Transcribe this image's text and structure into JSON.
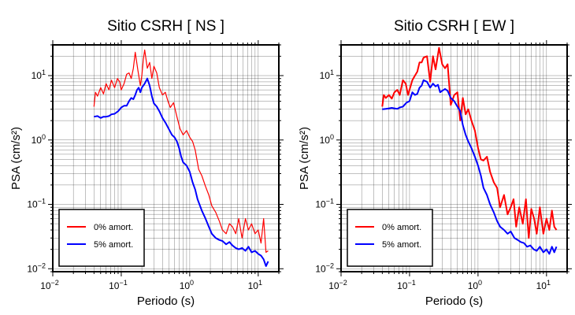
{
  "chart_data": [
    {
      "type": "line",
      "title": "Sitio CSRH [ NS ]",
      "xlabel": "Periodo (s)",
      "ylabel": "PSA (cm/s²)",
      "x_scale": "log",
      "y_scale": "log",
      "xlim": [
        0.01,
        20
      ],
      "ylim": [
        0.009,
        30
      ],
      "grid": true,
      "x_ticks": [
        {
          "value": 0.01,
          "label": "10",
          "exp": "−2"
        },
        {
          "value": 0.1,
          "label": "10",
          "exp": "−1"
        },
        {
          "value": 1,
          "label": "10",
          "exp": "0"
        },
        {
          "value": 10,
          "label": "10",
          "exp": "1"
        }
      ],
      "y_ticks": [
        {
          "value": 0.01,
          "label": "10",
          "exp": "−2"
        },
        {
          "value": 0.1,
          "label": "10",
          "exp": "−1"
        },
        {
          "value": 1,
          "label": "10",
          "exp": "0"
        },
        {
          "value": 10,
          "label": "10",
          "exp": "1"
        }
      ],
      "legend_position": "bottom-left",
      "series": [
        {
          "name": "0% amort.",
          "color": "#ff0000",
          "stroke_width": 1.2,
          "x": [
            0.04,
            0.042,
            0.045,
            0.05,
            0.055,
            0.06,
            0.066,
            0.072,
            0.08,
            0.088,
            0.095,
            0.1,
            0.11,
            0.12,
            0.13,
            0.14,
            0.15,
            0.16,
            0.175,
            0.19,
            0.2,
            0.21,
            0.22,
            0.24,
            0.26,
            0.28,
            0.3,
            0.33,
            0.36,
            0.4,
            0.44,
            0.48,
            0.52,
            0.58,
            0.65,
            0.72,
            0.8,
            0.9,
            1.0,
            1.1,
            1.2,
            1.35,
            1.5,
            1.7,
            1.9,
            2.1,
            2.4,
            2.7,
            3.0,
            3.4,
            3.8,
            4.2,
            4.7,
            5.2,
            5.8,
            6.5,
            7.2,
            8.0,
            9.0,
            10.0,
            11.0,
            12.0,
            13.0,
            14.0
          ],
          "y": [
            3.3,
            5.5,
            4.8,
            6.5,
            5.2,
            7.5,
            6.0,
            8.5,
            6.5,
            9.0,
            8.0,
            6.0,
            7.5,
            10.5,
            11.0,
            9.0,
            13.0,
            23.0,
            12.0,
            7.0,
            10.0,
            18.0,
            25.0,
            13.0,
            16.0,
            9.0,
            14.0,
            11.0,
            6.5,
            5.0,
            5.5,
            4.0,
            3.2,
            3.8,
            2.3,
            1.5,
            1.2,
            1.4,
            1.1,
            0.95,
            0.7,
            0.35,
            0.28,
            0.19,
            0.14,
            0.095,
            0.075,
            0.055,
            0.04,
            0.035,
            0.05,
            0.045,
            0.035,
            0.06,
            0.03,
            0.06,
            0.04,
            0.05,
            0.035,
            0.04,
            0.025,
            0.06,
            0.018,
            0.019
          ]
        },
        {
          "name": "5% amort.",
          "color": "#0000ff",
          "stroke_width": 2,
          "x": [
            0.04,
            0.045,
            0.05,
            0.055,
            0.06,
            0.066,
            0.072,
            0.08,
            0.09,
            0.1,
            0.11,
            0.12,
            0.13,
            0.14,
            0.15,
            0.16,
            0.17,
            0.18,
            0.19,
            0.2,
            0.22,
            0.24,
            0.26,
            0.28,
            0.3,
            0.33,
            0.36,
            0.4,
            0.45,
            0.5,
            0.55,
            0.6,
            0.65,
            0.7,
            0.75,
            0.8,
            0.9,
            1.0,
            1.1,
            1.2,
            1.3,
            1.5,
            1.7,
            1.9,
            2.1,
            2.4,
            2.7,
            3.0,
            3.4,
            3.8,
            4.2,
            4.7,
            5.2,
            5.8,
            6.5,
            7.2,
            8.0,
            9.0,
            10.0,
            11.0,
            12.0,
            13.0,
            14.0
          ],
          "y": [
            2.3,
            2.35,
            2.2,
            2.3,
            2.3,
            2.35,
            2.5,
            2.55,
            2.8,
            3.2,
            3.4,
            3.4,
            4.0,
            4.5,
            4.3,
            5.0,
            6.0,
            6.5,
            5.5,
            6.5,
            7.5,
            9.0,
            7.0,
            4.8,
            3.7,
            3.3,
            2.8,
            2.2,
            1.8,
            1.45,
            1.2,
            1.1,
            0.95,
            0.75,
            0.55,
            0.45,
            0.4,
            0.32,
            0.22,
            0.17,
            0.12,
            0.08,
            0.06,
            0.045,
            0.035,
            0.03,
            0.028,
            0.027,
            0.024,
            0.026,
            0.023,
            0.021,
            0.02,
            0.021,
            0.019,
            0.022,
            0.018,
            0.019,
            0.017,
            0.016,
            0.014,
            0.011,
            0.013
          ]
        }
      ]
    },
    {
      "type": "line",
      "title": "Sitio CSRH [ EW ]",
      "xlabel": "Periodo (s)",
      "ylabel": "PSA (cm/s²)",
      "x_scale": "log",
      "y_scale": "log",
      "xlim": [
        0.01,
        20
      ],
      "ylim": [
        0.009,
        30
      ],
      "grid": true,
      "x_ticks": [
        {
          "value": 0.01,
          "label": "10",
          "exp": "−2"
        },
        {
          "value": 0.1,
          "label": "10",
          "exp": "−1"
        },
        {
          "value": 1,
          "label": "10",
          "exp": "0"
        },
        {
          "value": 10,
          "label": "10",
          "exp": "1"
        }
      ],
      "y_ticks": [
        {
          "value": 0.01,
          "label": "10",
          "exp": "−2"
        },
        {
          "value": 0.1,
          "label": "10",
          "exp": "−1"
        },
        {
          "value": 1,
          "label": "10",
          "exp": "0"
        },
        {
          "value": 10,
          "label": "10",
          "exp": "1"
        }
      ],
      "legend_position": "bottom-left",
      "series": [
        {
          "name": "0% amort.",
          "color": "#ff0000",
          "stroke_width": 2,
          "x": [
            0.04,
            0.042,
            0.045,
            0.05,
            0.055,
            0.06,
            0.066,
            0.072,
            0.08,
            0.088,
            0.095,
            0.1,
            0.11,
            0.12,
            0.13,
            0.14,
            0.15,
            0.16,
            0.18,
            0.2,
            0.22,
            0.24,
            0.27,
            0.3,
            0.33,
            0.36,
            0.4,
            0.45,
            0.5,
            0.55,
            0.6,
            0.66,
            0.72,
            0.8,
            0.9,
            1.0,
            1.1,
            1.2,
            1.35,
            1.5,
            1.7,
            1.9,
            2.1,
            2.4,
            2.7,
            3.0,
            3.3,
            3.6,
            4.0,
            4.5,
            5.0,
            5.5,
            6.0,
            6.6,
            7.2,
            8.0,
            9.0,
            10.0,
            11.0,
            12.0,
            13.0,
            14.0
          ],
          "y": [
            3.3,
            5.0,
            4.5,
            5.0,
            4.4,
            5.5,
            6.0,
            5.0,
            8.5,
            7.5,
            5.0,
            6.0,
            8.5,
            10.0,
            11.5,
            16.0,
            16.0,
            19.0,
            20.0,
            8.0,
            20.0,
            12.5,
            27.0,
            15.0,
            13.0,
            15.0,
            3.5,
            5.0,
            5.5,
            2.0,
            4.5,
            2.5,
            3.0,
            2.0,
            1.4,
            0.75,
            0.5,
            0.48,
            0.55,
            0.32,
            0.22,
            0.18,
            0.09,
            0.14,
            0.07,
            0.09,
            0.12,
            0.045,
            0.09,
            0.05,
            0.12,
            0.03,
            0.085,
            0.06,
            0.035,
            0.09,
            0.035,
            0.06,
            0.04,
            0.08,
            0.045,
            0.04
          ]
        },
        {
          "name": "5% amort.",
          "color": "#0000ff",
          "stroke_width": 2,
          "x": [
            0.04,
            0.045,
            0.05,
            0.055,
            0.06,
            0.066,
            0.072,
            0.08,
            0.09,
            0.1,
            0.11,
            0.12,
            0.13,
            0.14,
            0.15,
            0.16,
            0.18,
            0.2,
            0.22,
            0.24,
            0.26,
            0.28,
            0.3,
            0.33,
            0.36,
            0.4,
            0.45,
            0.5,
            0.55,
            0.6,
            0.66,
            0.72,
            0.8,
            0.9,
            1.0,
            1.1,
            1.2,
            1.35,
            1.5,
            1.7,
            1.9,
            2.1,
            2.4,
            2.7,
            3.0,
            3.4,
            3.8,
            4.2,
            4.7,
            5.2,
            5.8,
            6.5,
            7.2,
            8.0,
            9.0,
            10.0,
            11.0,
            12.0,
            13.0,
            14.0
          ],
          "y": [
            3.0,
            3.05,
            3.1,
            3.15,
            3.1,
            3.05,
            3.2,
            3.3,
            3.8,
            4.0,
            5.5,
            5.0,
            5.2,
            6.5,
            7.0,
            8.5,
            8.0,
            6.5,
            7.5,
            6.8,
            7.2,
            5.5,
            5.8,
            6.2,
            5.8,
            4.5,
            4.0,
            3.3,
            2.8,
            1.7,
            1.2,
            0.95,
            0.75,
            0.55,
            0.4,
            0.28,
            0.18,
            0.14,
            0.1,
            0.075,
            0.055,
            0.045,
            0.04,
            0.035,
            0.038,
            0.03,
            0.028,
            0.026,
            0.025,
            0.022,
            0.023,
            0.02,
            0.019,
            0.022,
            0.018,
            0.02,
            0.017,
            0.022,
            0.018,
            0.022
          ]
        }
      ]
    }
  ]
}
